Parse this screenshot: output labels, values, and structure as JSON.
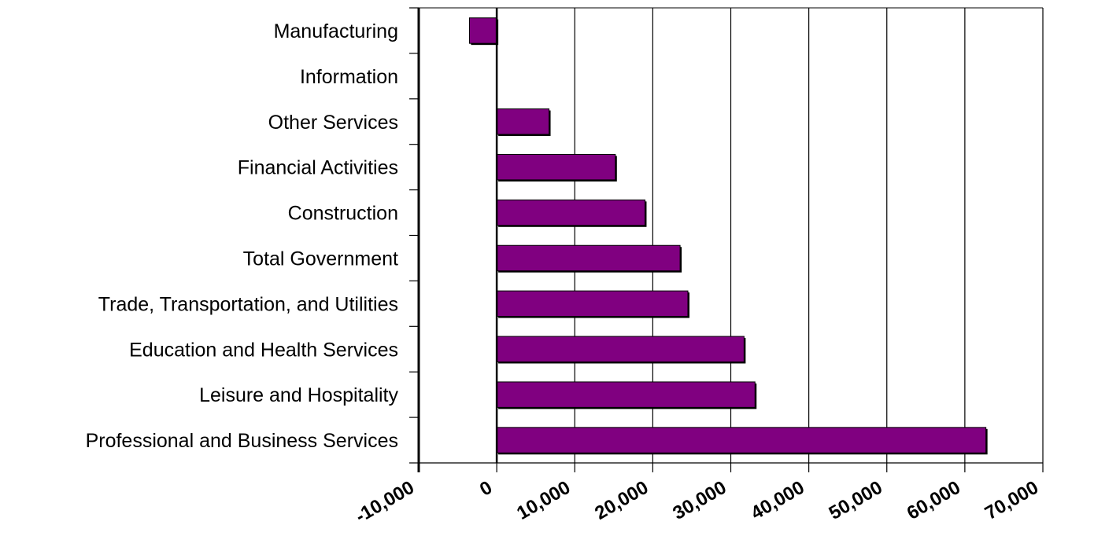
{
  "chart_data": {
    "type": "bar",
    "orientation": "horizontal",
    "categories": [
      "Manufacturing",
      "Information",
      "Other Services",
      "Financial Activities",
      "Construction",
      "Total Government",
      "Trade, Transportation, and Utilities",
      "Education and Health Services",
      "Leisure and Hospitality",
      "Professional and Business Services"
    ],
    "values": [
      -3500,
      0,
      6700,
      15200,
      19000,
      23500,
      24500,
      31700,
      33100,
      62700
    ],
    "xlim": [
      -10000,
      70000
    ],
    "xticks": [
      -10000,
      0,
      10000,
      20000,
      30000,
      40000,
      50000,
      60000,
      70000
    ],
    "xtick_labels": [
      "-10,000",
      "0",
      "10,000",
      "20,000",
      "30,000",
      "40,000",
      "50,000",
      "60,000",
      "70,000"
    ],
    "grid": "vertical",
    "bar_color": "#800080",
    "title": "",
    "xlabel": "",
    "ylabel": ""
  }
}
